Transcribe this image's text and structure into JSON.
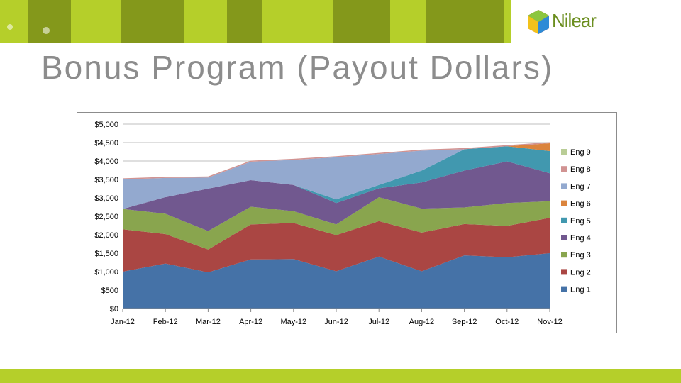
{
  "slide": {
    "title": "Bonus Program (Payout Dollars)",
    "logo_text": "Nilear"
  },
  "colors": {
    "accent": "#b5cf2a",
    "title": "#8c8c8c"
  },
  "chart_data": {
    "type": "area",
    "stacked": true,
    "categories": [
      "Jan-12",
      "Feb-12",
      "Mar-12",
      "Apr-12",
      "May-12",
      "Jun-12",
      "Jul-12",
      "Aug-12",
      "Sep-12",
      "Oct-12",
      "Nov-12"
    ],
    "ylim": [
      0,
      5000
    ],
    "yticks": [
      "$0",
      "$500",
      "$1,000",
      "$1,500",
      "$2,000",
      "$2,500",
      "$3,000",
      "$3,500",
      "$4,000",
      "$4,500",
      "$5,000"
    ],
    "grid": true,
    "legend_position": "right",
    "series": [
      {
        "name": "Eng 1",
        "color": "#4572a7",
        "values": [
          1000,
          1220,
          980,
          1330,
          1340,
          1010,
          1410,
          1010,
          1440,
          1390,
          1500
        ]
      },
      {
        "name": "Eng 2",
        "color": "#aa4643",
        "values": [
          1150,
          800,
          620,
          950,
          980,
          980,
          960,
          1050,
          850,
          850,
          960
        ]
      },
      {
        "name": "Eng 3",
        "color": "#89a54e",
        "values": [
          550,
          550,
          500,
          480,
          320,
          290,
          650,
          650,
          450,
          620,
          450
        ]
      },
      {
        "name": "Eng 4",
        "color": "#71588f",
        "values": [
          0,
          450,
          1150,
          720,
          710,
          580,
          240,
          710,
          1000,
          1130,
          760
        ]
      },
      {
        "name": "Eng 5",
        "color": "#4198af",
        "values": [
          0,
          0,
          0,
          0,
          0,
          100,
          90,
          320,
          580,
          410,
          600
        ]
      },
      {
        "name": "Eng 6",
        "color": "#db843d",
        "values": [
          0,
          0,
          0,
          0,
          0,
          0,
          0,
          0,
          0,
          0,
          210
        ]
      },
      {
        "name": "Eng 7",
        "color": "#93a9cf",
        "values": [
          800,
          520,
          300,
          500,
          680,
          1140,
          840,
          540,
          0,
          0,
          0
        ]
      },
      {
        "name": "Eng 8",
        "color": "#d19392",
        "values": [
          30,
          30,
          30,
          30,
          30,
          30,
          30,
          30,
          30,
          30,
          30
        ]
      },
      {
        "name": "Eng 9",
        "color": "#b9cd96",
        "values": [
          0,
          0,
          0,
          0,
          0,
          0,
          0,
          0,
          0,
          0,
          0
        ]
      }
    ]
  }
}
